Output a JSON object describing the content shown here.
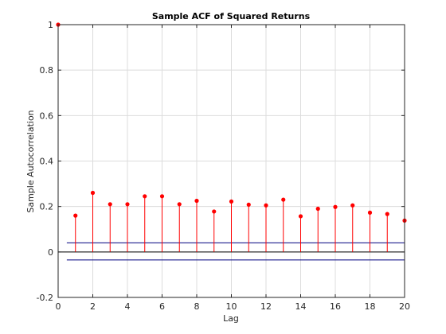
{
  "chart_data": {
    "type": "stem",
    "title": "Sample ACF of Squared Returns",
    "xlabel": "Lag",
    "ylabel": "Sample Autocorrelation",
    "xlim": [
      0,
      20
    ],
    "ylim": [
      -0.2,
      1
    ],
    "xticks": [
      0,
      2,
      4,
      6,
      8,
      10,
      12,
      14,
      16,
      18,
      20
    ],
    "yticks": [
      -0.2,
      0,
      0.2,
      0.4,
      0.6,
      0.8,
      1
    ],
    "grid": true,
    "x": [
      0,
      1,
      2,
      3,
      4,
      5,
      6,
      7,
      8,
      9,
      10,
      11,
      12,
      13,
      14,
      15,
      16,
      17,
      18,
      19,
      20
    ],
    "values": [
      1.0,
      0.16,
      0.26,
      0.21,
      0.21,
      0.245,
      0.245,
      0.21,
      0.225,
      0.178,
      0.222,
      0.208,
      0.205,
      0.23,
      0.157,
      0.19,
      0.198,
      0.205,
      0.173,
      0.167,
      0.138
    ],
    "confidence_bounds": {
      "upper": 0.04,
      "lower": -0.035,
      "x_range": [
        0.5,
        20
      ]
    },
    "colors": {
      "stem": "#ff0000",
      "marker": "#ff0000",
      "bounds": "#00007f",
      "zero_line": "#000000",
      "grid": "#dcdcdc",
      "axes": "#262626"
    }
  }
}
